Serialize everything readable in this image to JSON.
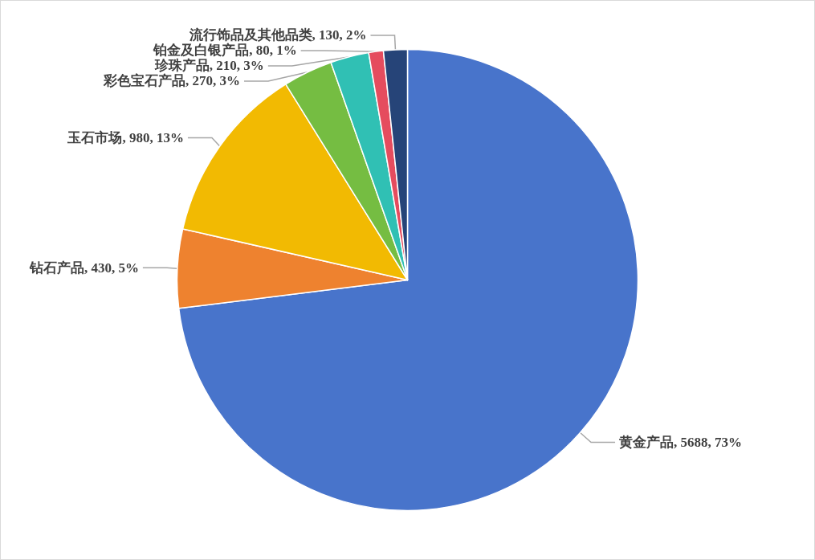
{
  "chart_data": {
    "type": "pie",
    "categories": [
      "黄金产品",
      "钻石产品",
      "玉石市场",
      "彩色宝石产品",
      "珍珠产品",
      "铂金及白银产品",
      "流行饰品及其他品类"
    ],
    "values": [
      5688,
      430,
      980,
      270,
      210,
      80,
      130
    ],
    "value_labels": [
      "5688, 73%",
      "430, 5%",
      "980, 13%",
      "270, 3%",
      "210, 3%",
      "80, 1%",
      "130, 2%"
    ],
    "colors": [
      "#4874cb",
      "#ee822f",
      "#f2ba02",
      "#75bd42",
      "#30c0b4",
      "#e54c5e",
      "#264478"
    ],
    "legend": false
  }
}
